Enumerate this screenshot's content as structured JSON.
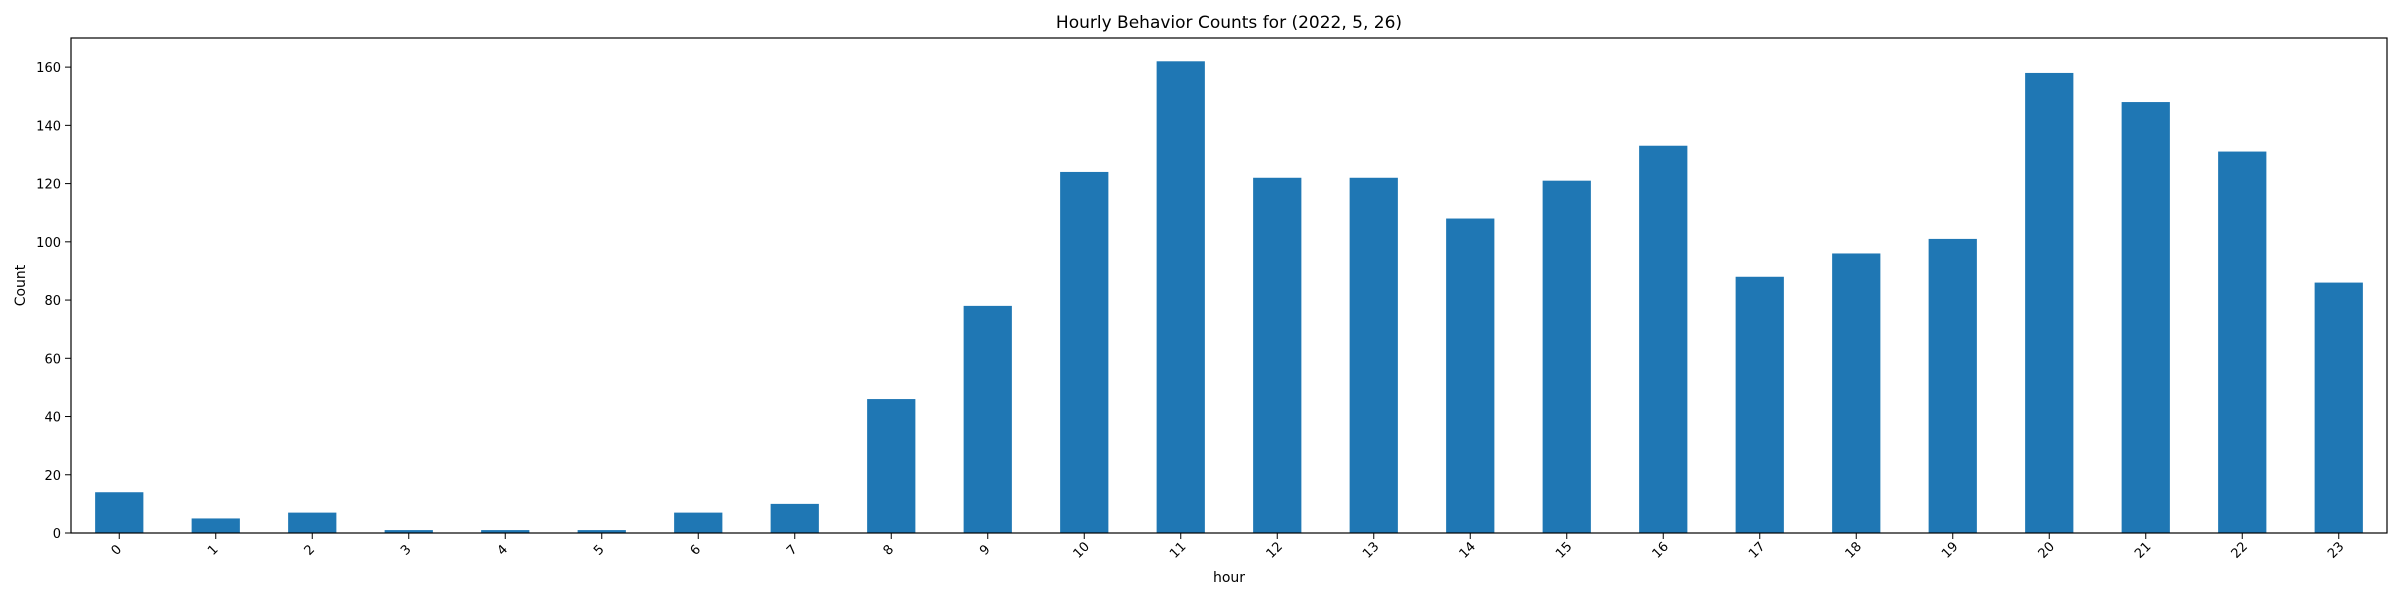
{
  "chart_data": {
    "type": "bar",
    "title": "Hourly Behavior Counts for (2022, 5, 26)",
    "xlabel": "hour",
    "ylabel": "Count",
    "categories": [
      "0",
      "1",
      "2",
      "3",
      "4",
      "5",
      "6",
      "7",
      "8",
      "9",
      "10",
      "11",
      "12",
      "13",
      "14",
      "15",
      "16",
      "17",
      "18",
      "19",
      "20",
      "21",
      "22",
      "23"
    ],
    "values": [
      14,
      5,
      7,
      1,
      1,
      1,
      7,
      10,
      46,
      78,
      124,
      162,
      122,
      122,
      108,
      121,
      133,
      88,
      96,
      101,
      158,
      148,
      131,
      86
    ],
    "ylim": [
      0,
      170
    ],
    "yticks": [
      0,
      20,
      40,
      60,
      80,
      100,
      120,
      140,
      160
    ],
    "bar_color": "#1f77b4",
    "grid": false,
    "legend": "none"
  }
}
